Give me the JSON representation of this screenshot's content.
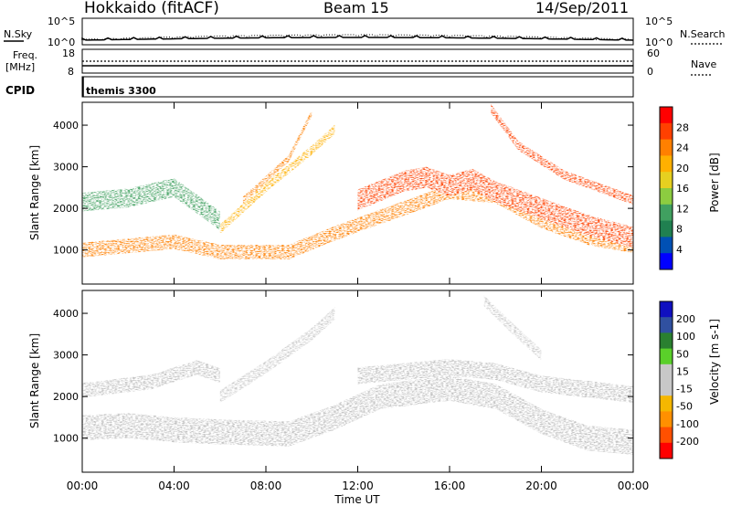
{
  "header": {
    "radar": "Hokkaido (fitACF)",
    "beam": "Beam 15",
    "date": "14/Sep/2011"
  },
  "nsky_panel": {
    "left_label": "N.Sky",
    "right_label": "N.Search",
    "left_ticks": [
      "10^5",
      "10^0"
    ],
    "right_ticks": [
      "10^5",
      "10^0"
    ]
  },
  "freq_panel": {
    "left_label_1": "Freq.",
    "left_label_2": "[MHz]",
    "right_label": "Nave",
    "left_ticks": [
      "18",
      "8"
    ],
    "right_ticks": [
      "60",
      "0"
    ]
  },
  "cpid_panel": {
    "label": "CPID",
    "mode": "themis 3300"
  },
  "colors": {
    "power_scale": [
      "#0000ff",
      "#0050b4",
      "#208050",
      "#40a060",
      "#8ccc40",
      "#e6d020",
      "#ffb000",
      "#ff8000",
      "#ff4000",
      "#ff0000"
    ],
    "velocity_scale": [
      "#ff0000",
      "#ff5000",
      "#ff9000",
      "#f5b700",
      "#c8c8c8",
      "#c8c8c8",
      "#5ad02a",
      "#2a8030",
      "#3050a0",
      "#1010c0"
    ],
    "ground_scatter": "#bebebe"
  },
  "chart_data": [
    {
      "type": "heatmap",
      "name": "power",
      "ylabel": "Slant Range [km]",
      "colorbar_label": "Power [dB]",
      "colorbar_ticks": [
        "4",
        "8",
        "12",
        "16",
        "20",
        "24",
        "28"
      ],
      "yticks": [
        "1000",
        "2000",
        "3000",
        "4000"
      ],
      "ylim": [
        180,
        4550
      ],
      "xlim_hours": [
        0,
        24
      ],
      "bands": [
        {
          "points": [
            [
              0,
              1000
            ],
            [
              2,
              1100
            ],
            [
              4,
              1200
            ],
            [
              6,
              950
            ],
            [
              9,
              950
            ],
            [
              11,
              1400
            ],
            [
              14,
              2000
            ],
            [
              16,
              2400
            ],
            [
              18,
              2300
            ],
            [
              20,
              1700
            ],
            [
              22,
              1300
            ],
            [
              24,
              1100
            ]
          ],
          "width_km": 350,
          "power": 24
        },
        {
          "points": [
            [
              0,
              2150
            ],
            [
              2,
              2250
            ],
            [
              4,
              2500
            ],
            [
              5,
              2100
            ],
            [
              6,
              1700
            ]
          ],
          "width_km": 450,
          "power": 12
        },
        {
          "points": [
            [
              12,
              2200
            ],
            [
              14,
              2650
            ],
            [
              15,
              2750
            ],
            [
              16,
              2550
            ],
            [
              17,
              2700
            ],
            [
              18,
              2400
            ],
            [
              20,
              2000
            ],
            [
              22,
              1600
            ],
            [
              24,
              1300
            ]
          ],
          "width_km": 500,
          "power": 28
        },
        {
          "points": [
            [
              6,
              1500
            ],
            [
              8,
              2500
            ],
            [
              10,
              3400
            ],
            [
              11,
              3900
            ]
          ],
          "width_km": 220,
          "power": 20
        },
        {
          "points": [
            [
              7,
              2200
            ],
            [
              9,
              3200
            ],
            [
              10,
              4300
            ]
          ],
          "width_km": 160,
          "power": 24
        },
        {
          "points": [
            [
              17.8,
              4400
            ],
            [
              19,
              3500
            ],
            [
              21,
              2800
            ],
            [
              24,
              2200
            ]
          ],
          "width_km": 220,
          "power": 28
        }
      ]
    },
    {
      "type": "heatmap",
      "name": "velocity",
      "ylabel": "Slant Range [km]",
      "colorbar_label": "Velocity [m s-1]",
      "colorbar_ticks": [
        "200",
        "100",
        "50",
        "15",
        "-15",
        "-50",
        "-100",
        "-200"
      ],
      "xlabel": "Time UT",
      "xticks": [
        "00:00",
        "04:00",
        "08:00",
        "12:00",
        "16:00",
        "20:00",
        "00:00"
      ],
      "yticks": [
        "1000",
        "2000",
        "3000",
        "4000"
      ],
      "ylim": [
        180,
        4550
      ],
      "xlim_hours": [
        0,
        24
      ],
      "bands": [
        {
          "points": [
            [
              0,
              1250
            ],
            [
              2,
              1300
            ],
            [
              4,
              1200
            ],
            [
              6,
              1150
            ],
            [
              9,
              1100
            ],
            [
              11,
              1500
            ],
            [
              13,
              2000
            ],
            [
              16,
              2200
            ],
            [
              18,
              2000
            ],
            [
              20,
              1400
            ],
            [
              22,
              1000
            ],
            [
              24,
              900
            ]
          ],
          "width_km": 600,
          "velocity": 0
        },
        {
          "points": [
            [
              0,
              2150
            ],
            [
              3,
              2350
            ],
            [
              5,
              2700
            ],
            [
              6,
              2500
            ]
          ],
          "width_km": 350,
          "velocity": 0
        },
        {
          "points": [
            [
              12,
              2500
            ],
            [
              14,
              2600
            ],
            [
              16,
              2700
            ],
            [
              18,
              2600
            ],
            [
              20,
              2300
            ],
            [
              24,
              2050
            ]
          ],
          "width_km": 400,
          "velocity": 0
        },
        {
          "points": [
            [
              6,
              2000
            ],
            [
              8,
              2700
            ],
            [
              10,
              3500
            ],
            [
              11,
              4000
            ]
          ],
          "width_km": 300,
          "velocity": -30
        },
        {
          "points": [
            [
              17.5,
              4300
            ],
            [
              18.8,
              3600
            ],
            [
              20,
              3000
            ]
          ],
          "width_km": 260,
          "velocity": 25
        }
      ]
    }
  ]
}
